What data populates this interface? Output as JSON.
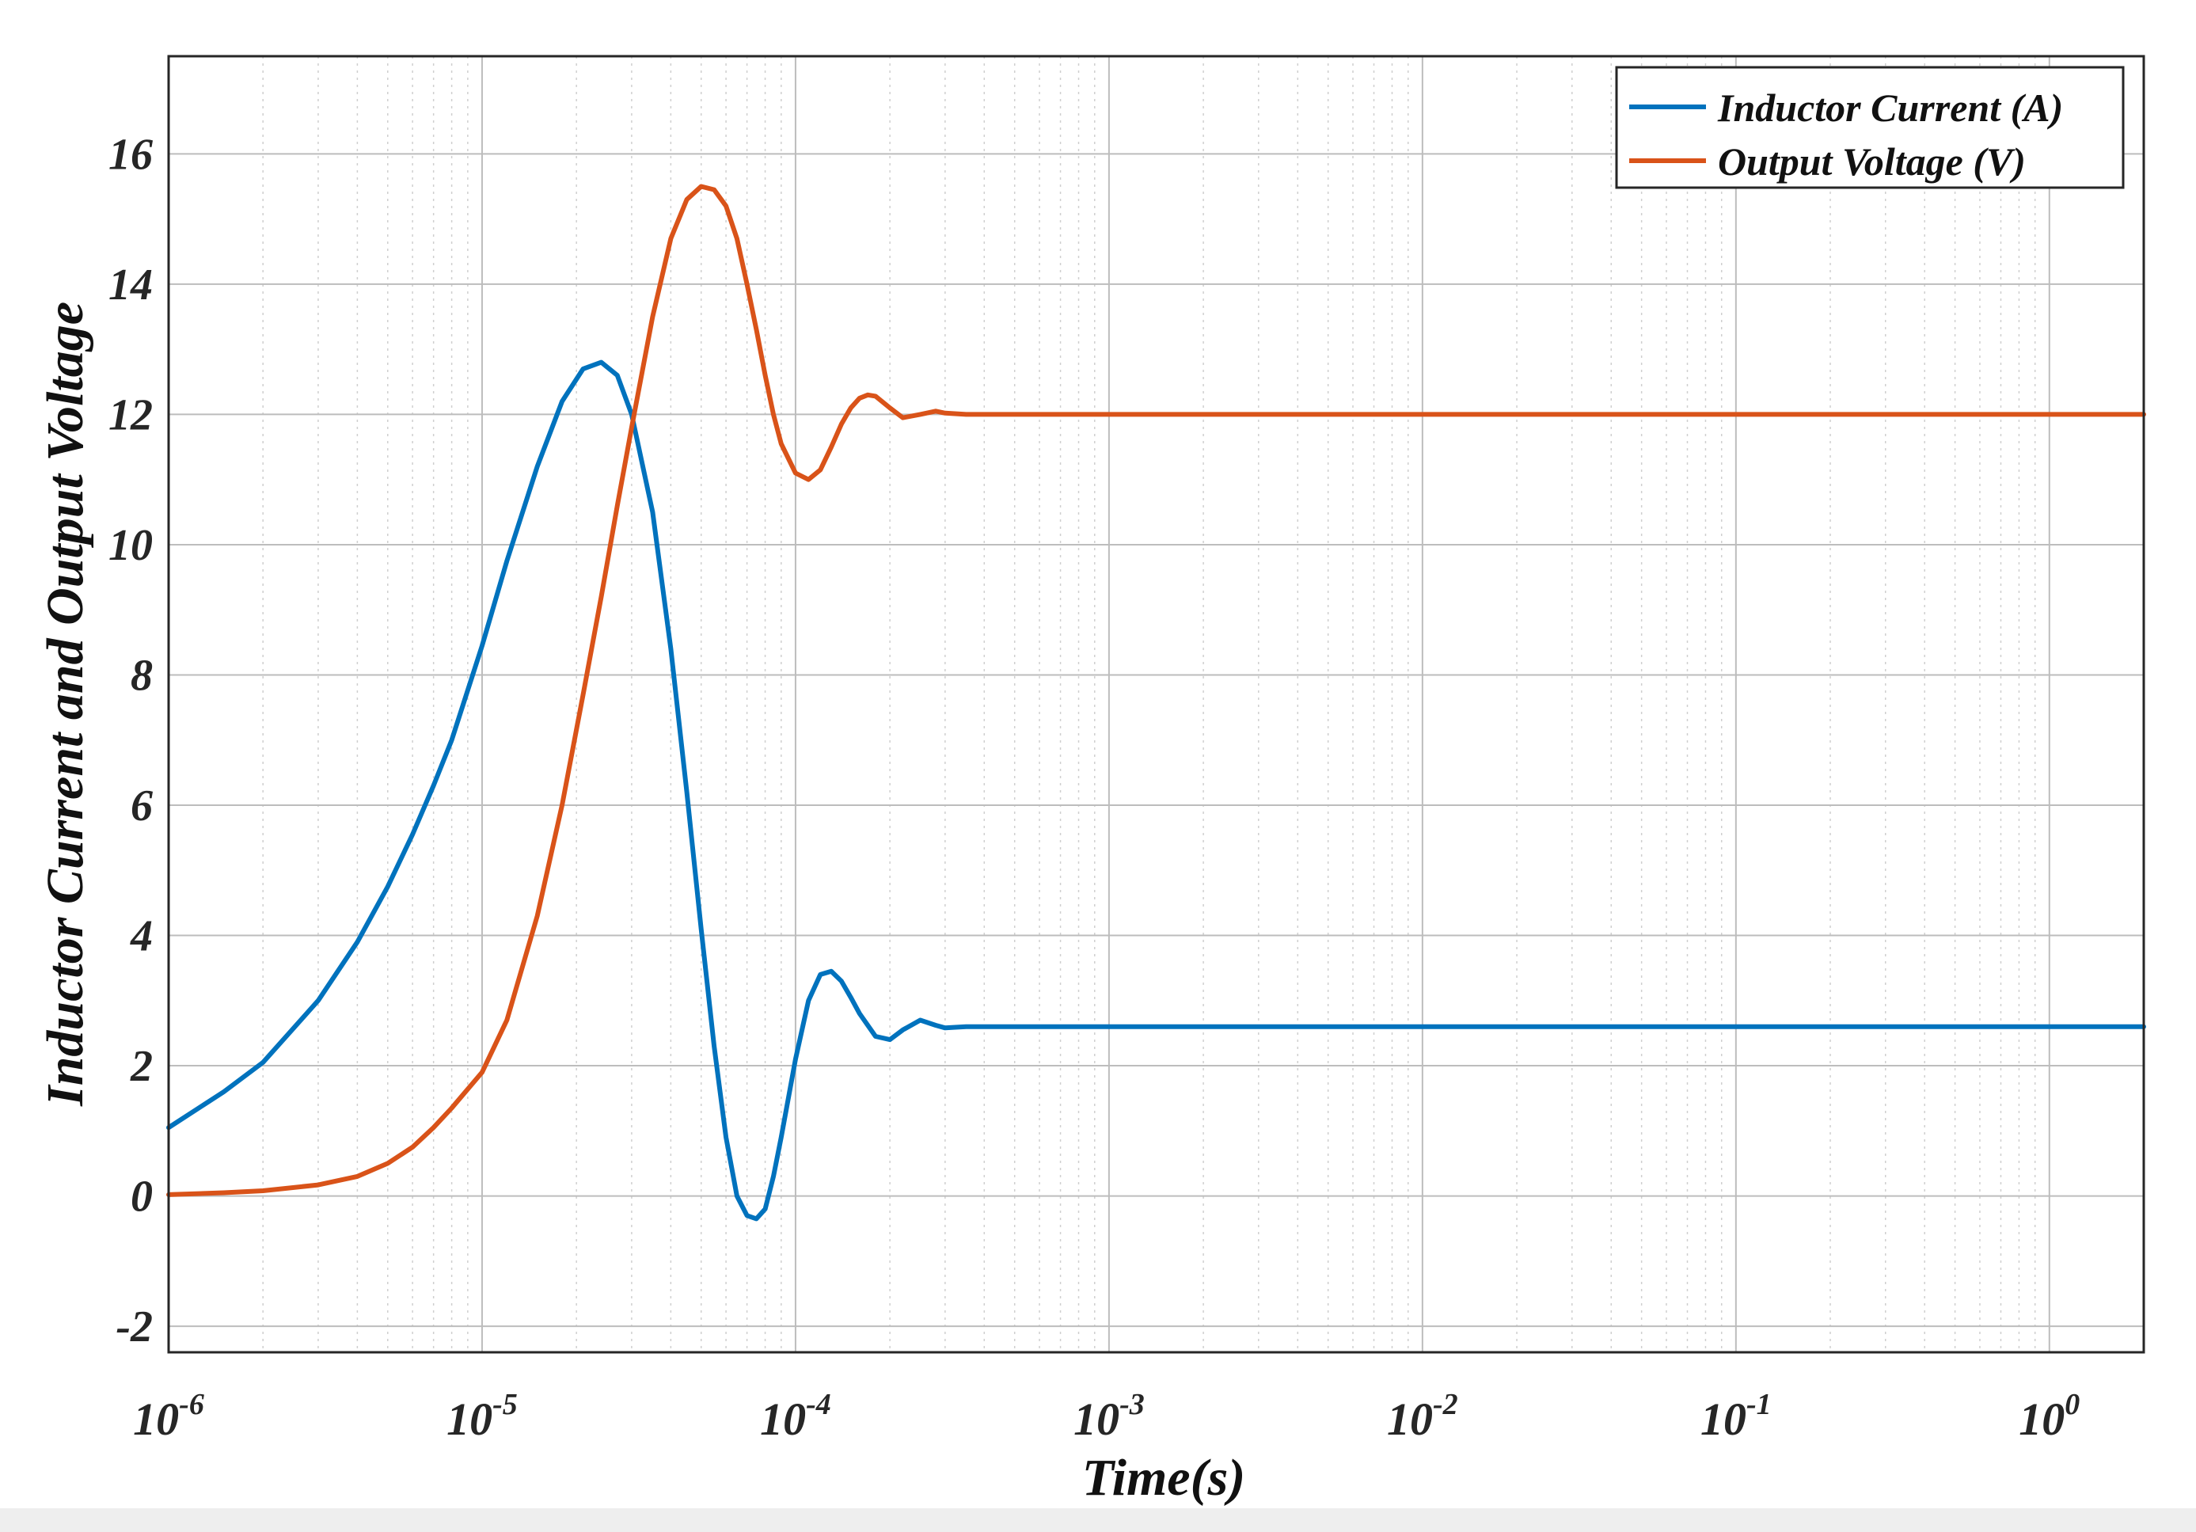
{
  "chart_data": {
    "type": "line",
    "xscale": "log",
    "xlabel": "Time(s)",
    "ylabel": "Inductor Current and Output Voltage",
    "xlim": [
      1e-06,
      2
    ],
    "ylim": [
      -2.4,
      17.5
    ],
    "grid": true,
    "minor_grid": true,
    "legend_position": "top-right",
    "yticks": [
      -2,
      0,
      2,
      4,
      6,
      8,
      10,
      12,
      14,
      16
    ],
    "ytick_labels": [
      "-2",
      "0",
      "2",
      "4",
      "6",
      "8",
      "10",
      "12",
      "14",
      "16"
    ],
    "xticks": [
      1e-06,
      1e-05,
      0.0001,
      0.001,
      0.01,
      0.1,
      1
    ],
    "xtick_labels": [
      {
        "base": "10",
        "exp": "-6"
      },
      {
        "base": "10",
        "exp": "-5"
      },
      {
        "base": "10",
        "exp": "-4"
      },
      {
        "base": "10",
        "exp": "-3"
      },
      {
        "base": "10",
        "exp": "-2"
      },
      {
        "base": "10",
        "exp": "-1"
      },
      {
        "base": "10",
        "exp": "0"
      }
    ],
    "series": [
      {
        "name": "Inductor Current (A)",
        "color": "#0072BD",
        "x": [
          1e-06,
          1.5e-06,
          2e-06,
          3e-06,
          4e-06,
          5e-06,
          6e-06,
          7e-06,
          8e-06,
          1e-05,
          1.2e-05,
          1.5e-05,
          1.8e-05,
          2.1e-05,
          2.4e-05,
          2.7e-05,
          3e-05,
          3.5e-05,
          4e-05,
          4.5e-05,
          5e-05,
          5.5e-05,
          6e-05,
          6.5e-05,
          7e-05,
          7.5e-05,
          8e-05,
          8.5e-05,
          9e-05,
          0.0001,
          0.00011,
          0.00012,
          0.00013,
          0.00014,
          0.00015,
          0.00016,
          0.00018,
          0.0002,
          0.00022,
          0.00025,
          0.00028,
          0.0003,
          0.00035,
          0.0005,
          0.001,
          0.01,
          0.1,
          1,
          2
        ],
        "y": [
          1.05,
          1.6,
          2.05,
          3.0,
          3.9,
          4.75,
          5.55,
          6.3,
          7.0,
          8.45,
          9.75,
          11.2,
          12.2,
          12.7,
          12.8,
          12.6,
          12.0,
          10.5,
          8.4,
          6.2,
          4.1,
          2.3,
          0.9,
          0.0,
          -0.3,
          -0.35,
          -0.2,
          0.3,
          0.9,
          2.1,
          3.0,
          3.4,
          3.45,
          3.3,
          3.05,
          2.8,
          2.45,
          2.4,
          2.55,
          2.7,
          2.62,
          2.58,
          2.6,
          2.6,
          2.6,
          2.6,
          2.6,
          2.6,
          2.6
        ]
      },
      {
        "name": "Output Voltage (V)",
        "color": "#D95319",
        "x": [
          1e-06,
          1.5e-06,
          2e-06,
          3e-06,
          4e-06,
          5e-06,
          6e-06,
          7e-06,
          8e-06,
          1e-05,
          1.2e-05,
          1.5e-05,
          1.8e-05,
          2.1e-05,
          2.4e-05,
          2.7e-05,
          3e-05,
          3.5e-05,
          4e-05,
          4.5e-05,
          5e-05,
          5.5e-05,
          6e-05,
          6.5e-05,
          7e-05,
          7.5e-05,
          8e-05,
          8.5e-05,
          9e-05,
          0.0001,
          0.00011,
          0.00012,
          0.00013,
          0.00014,
          0.00015,
          0.00016,
          0.00017,
          0.00018,
          0.0002,
          0.00022,
          0.00025,
          0.00028,
          0.0003,
          0.00035,
          0.0005,
          0.001,
          0.01,
          0.1,
          1,
          2
        ],
        "y": [
          0.02,
          0.05,
          0.08,
          0.17,
          0.3,
          0.5,
          0.75,
          1.05,
          1.35,
          1.9,
          2.7,
          4.3,
          6.0,
          7.7,
          9.2,
          10.6,
          11.8,
          13.5,
          14.7,
          15.3,
          15.5,
          15.45,
          15.2,
          14.7,
          14.0,
          13.3,
          12.6,
          12.0,
          11.55,
          11.1,
          11.0,
          11.15,
          11.5,
          11.85,
          12.1,
          12.25,
          12.3,
          12.28,
          12.1,
          11.95,
          12.0,
          12.05,
          12.02,
          12.0,
          12.0,
          12.0,
          12.0,
          12.0,
          12.0,
          12.0
        ]
      }
    ]
  }
}
